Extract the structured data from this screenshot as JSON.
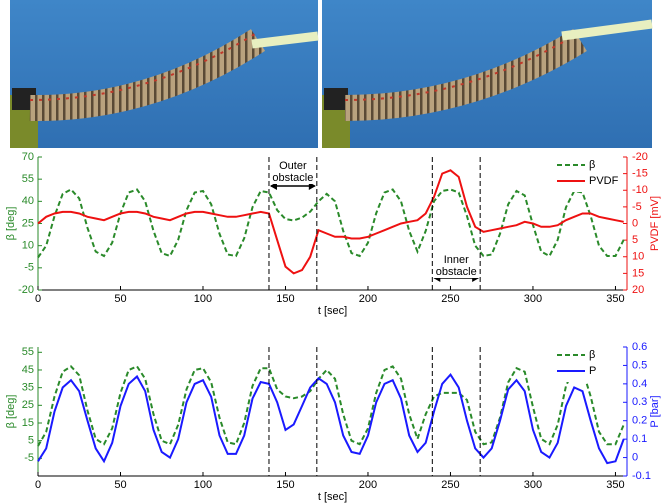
{
  "chart_data": [
    {
      "type": "line",
      "xlabel": "t [sec]",
      "ylabel": "β [deg]",
      "y2label": "PVDF [mV]",
      "xlim": [
        0,
        357
      ],
      "xticks": [
        0,
        50,
        100,
        150,
        200,
        250,
        300,
        350
      ],
      "ylim": [
        -20,
        70
      ],
      "yticks": [
        -20,
        -5,
        10,
        25,
        40,
        55,
        70
      ],
      "y2lim": [
        20,
        -20
      ],
      "y2ticks": [
        -20,
        -15,
        -10,
        -5,
        0,
        5,
        10,
        15,
        20
      ],
      "legend": "upper right",
      "markers": [
        140,
        169,
        239,
        268
      ],
      "annotations": [
        "Outer obstacle",
        "Inner obstacle"
      ],
      "x": [
        0,
        5,
        10,
        15,
        20,
        25,
        30,
        35,
        40,
        45,
        50,
        55,
        60,
        65,
        70,
        75,
        80,
        85,
        90,
        95,
        100,
        105,
        110,
        115,
        120,
        125,
        130,
        135,
        140,
        145,
        150,
        155,
        160,
        165,
        170,
        175,
        180,
        185,
        190,
        195,
        200,
        205,
        210,
        215,
        220,
        225,
        230,
        235,
        240,
        245,
        250,
        255,
        260,
        265,
        270,
        275,
        280,
        285,
        290,
        295,
        300,
        305,
        310,
        315,
        320,
        325,
        330,
        335,
        340,
        345,
        350,
        355
      ],
      "series": [
        {
          "name": "β",
          "color": "#2a8a2a",
          "dashed": true,
          "values": [
            2,
            10,
            30,
            45,
            48,
            42,
            22,
            6,
            3,
            12,
            32,
            46,
            48,
            40,
            20,
            5,
            3,
            14,
            34,
            46,
            47,
            38,
            18,
            4,
            3,
            15,
            36,
            47,
            46,
            34,
            28,
            27,
            29,
            33,
            40,
            45,
            40,
            20,
            5,
            3,
            12,
            32,
            46,
            48,
            40,
            20,
            6,
            20,
            40,
            47,
            48,
            46,
            30,
            10,
            3,
            4,
            18,
            38,
            47,
            44,
            24,
            6,
            3,
            14,
            36,
            47,
            46,
            30,
            10,
            3,
            3,
            14
          ]
        },
        {
          "name": "PVDF",
          "color": "#ee1111",
          "dashed": false,
          "axis": "y2",
          "values": [
            0,
            -2,
            -3,
            -3.5,
            -3.5,
            -3,
            -2,
            -1.5,
            -1,
            -2,
            -3,
            -3.5,
            -3.5,
            -3,
            -2,
            -1.5,
            -1,
            -2,
            -3,
            -3.5,
            -3.5,
            -3,
            -2.5,
            -2,
            -2,
            -2.5,
            -3,
            -3.5,
            -3,
            5,
            13,
            15,
            14,
            10,
            2,
            3,
            4,
            4,
            4.5,
            4.5,
            4,
            3,
            2,
            1,
            0,
            -0.5,
            -1,
            -3,
            -8,
            -15,
            -16,
            -14,
            -5,
            1,
            2.5,
            2,
            1.5,
            1,
            0.5,
            -0.5,
            0,
            1,
            1,
            0.5,
            -1,
            -2,
            -3,
            -3,
            -2,
            -1.5,
            -1,
            -0.5
          ]
        }
      ]
    },
    {
      "type": "line",
      "xlabel": "t [sec]",
      "ylabel": "β [deg]",
      "y2label": "P [bar]",
      "xlim": [
        0,
        357
      ],
      "xticks": [
        0,
        50,
        100,
        150,
        200,
        250,
        300,
        350
      ],
      "ylim": [
        -15,
        58
      ],
      "yticks": [
        -5,
        5,
        15,
        25,
        35,
        45,
        55
      ],
      "y2lim": [
        -0.1,
        0.6
      ],
      "y2ticks": [
        -0.1,
        0,
        0.1,
        0.2,
        0.3,
        0.4,
        0.5,
        0.6
      ],
      "legend": "upper right",
      "markers": [
        140,
        169,
        239,
        268
      ],
      "x": [
        0,
        5,
        10,
        15,
        20,
        25,
        30,
        35,
        40,
        45,
        50,
        55,
        60,
        65,
        70,
        75,
        80,
        85,
        90,
        95,
        100,
        105,
        110,
        115,
        120,
        125,
        130,
        135,
        140,
        145,
        150,
        155,
        160,
        165,
        170,
        175,
        180,
        185,
        190,
        195,
        200,
        205,
        210,
        215,
        220,
        225,
        230,
        235,
        240,
        245,
        250,
        255,
        260,
        265,
        270,
        275,
        280,
        285,
        290,
        295,
        300,
        305,
        310,
        315,
        320,
        325,
        330,
        335,
        340,
        345,
        350,
        355
      ],
      "series": [
        {
          "name": "β",
          "color": "#2a8a2a",
          "dashed": true,
          "values": [
            2,
            10,
            30,
            44,
            47,
            42,
            22,
            6,
            3,
            12,
            32,
            45,
            47,
            40,
            20,
            5,
            3,
            14,
            34,
            45,
            46,
            38,
            18,
            4,
            3,
            15,
            36,
            46,
            46,
            34,
            30,
            29,
            30,
            33,
            40,
            45,
            40,
            20,
            5,
            3,
            12,
            32,
            45,
            47,
            40,
            20,
            6,
            20,
            30,
            32,
            32,
            32,
            28,
            10,
            3,
            4,
            18,
            38,
            46,
            44,
            24,
            6,
            3,
            14,
            36,
            46,
            45,
            30,
            10,
            3,
            3,
            14
          ]
        },
        {
          "name": "P",
          "color": "#1a1aff",
          "dashed": false,
          "axis": "y2",
          "values": [
            -0.02,
            0.05,
            0.25,
            0.38,
            0.42,
            0.36,
            0.2,
            0.05,
            -0.02,
            0.08,
            0.28,
            0.4,
            0.44,
            0.36,
            0.15,
            0.03,
            0,
            0.1,
            0.3,
            0.4,
            0.42,
            0.33,
            0.12,
            0.02,
            0.02,
            0.12,
            0.32,
            0.41,
            0.4,
            0.3,
            0.15,
            0.18,
            0.28,
            0.38,
            0.43,
            0.4,
            0.3,
            0.12,
            0.03,
            0.02,
            0.12,
            0.3,
            0.4,
            0.42,
            0.32,
            0.12,
            0.03,
            0.08,
            0.25,
            0.4,
            0.45,
            0.38,
            0.2,
            0.05,
            0,
            0.05,
            0.2,
            0.37,
            0.42,
            0.36,
            0.15,
            0.03,
            0,
            0.08,
            0.28,
            0.38,
            0.36,
            0.2,
            0.05,
            -0.03,
            -0.02,
            0.1
          ]
        }
      ]
    }
  ]
}
